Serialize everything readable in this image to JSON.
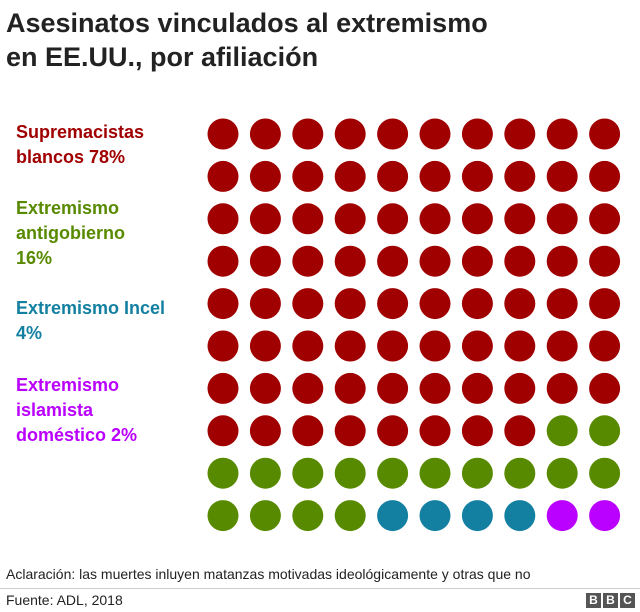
{
  "title_line1": "Asesinatos vinculados al extremismo",
  "title_line2": "en EE.UU., por afiliación",
  "chart_data": {
    "type": "waffle",
    "total_dots": 100,
    "rows": 10,
    "cols": 10,
    "categories": [
      {
        "key": "supremacistas",
        "label_lines": [
          "Supremacistas",
          "blancos 78%"
        ],
        "value": 78,
        "color": "#a00000"
      },
      {
        "key": "antigobierno",
        "label_lines": [
          "Extremismo",
          "antigobierno",
          "16%"
        ],
        "value": 16,
        "color": "#588a00"
      },
      {
        "key": "incel",
        "label_lines": [
          "Extremismo Incel",
          "4%"
        ],
        "value": 4,
        "color": "#1380a1"
      },
      {
        "key": "islamista",
        "label_lines": [
          "Extremismo",
          "islamista",
          "doméstico 2%"
        ],
        "value": 2,
        "color": "#ba00ff"
      }
    ]
  },
  "note": "Aclaración: las muertes inluyen matanzas motivadas ideológicamente y otras que no",
  "source": "Fuente: ADL, 2018",
  "logo_letters": [
    "B",
    "B",
    "C"
  ]
}
